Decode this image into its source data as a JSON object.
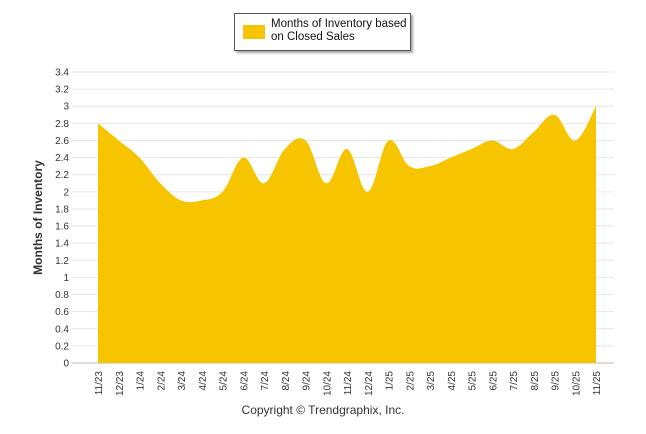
{
  "chart_data": {
    "type": "area",
    "ylabel": "Months of Inventory",
    "xlabel": "",
    "ylim": [
      0,
      3.4
    ],
    "yticks": [
      "0",
      "0.2",
      "0.4",
      "0.6",
      "0.8",
      "1",
      "1.2",
      "1.4",
      "1.6",
      "1.8",
      "2",
      "2.2",
      "2.4",
      "2.6",
      "2.8",
      "3",
      "3.2",
      "3.4"
    ],
    "categories": [
      "11/23",
      "12/23",
      "1/24",
      "2/24",
      "3/24",
      "4/24",
      "5/24",
      "6/24",
      "7/24",
      "8/24",
      "9/24",
      "10/24",
      "11/24",
      "12/24",
      "1/25",
      "2/25",
      "3/25",
      "4/25",
      "5/25",
      "6/25",
      "7/25",
      "8/25",
      "9/25",
      "10/25",
      "11/25"
    ],
    "series": [
      {
        "name": "Months of Inventory based on Closed Sales",
        "color": "#F7C400",
        "values": [
          2.8,
          2.6,
          2.4,
          2.1,
          1.9,
          1.9,
          2.0,
          2.4,
          2.1,
          2.5,
          2.6,
          2.1,
          2.5,
          2.0,
          2.6,
          2.3,
          2.3,
          2.4,
          2.5,
          2.6,
          2.5,
          2.7,
          2.9,
          2.6,
          3.0
        ]
      }
    ],
    "legend_position": "top-center",
    "grid": true
  },
  "legend": {
    "label": "Months of Inventory based on Closed Sales"
  },
  "footer": {
    "copyright": "Copyright © Trendgraphix, Inc."
  }
}
